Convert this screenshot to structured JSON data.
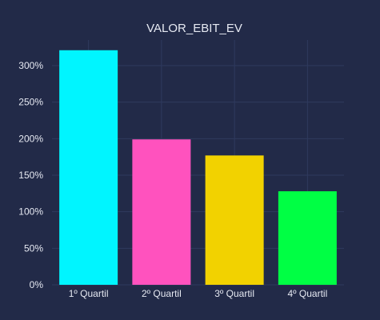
{
  "chart_data": {
    "type": "bar",
    "title": "VALOR_EBIT_EV",
    "categories": [
      "1º Quartil",
      "2º Quartil",
      "3º Quartil",
      "4º Quartil"
    ],
    "values": [
      3.21,
      1.99,
      1.77,
      1.28
    ],
    "colors": [
      "#00f5ff",
      "#ff52be",
      "#f2d200",
      "#00ff44"
    ],
    "ylim": [
      0,
      3.35
    ],
    "yticks": [
      0,
      0.5,
      1.0,
      1.5,
      2.0,
      2.5,
      3.0
    ],
    "ytick_labels": [
      "0%",
      "50%",
      "100%",
      "150%",
      "200%",
      "250%",
      "300%"
    ],
    "grid": true,
    "background": "#222a48",
    "xlabel": "",
    "ylabel": ""
  }
}
